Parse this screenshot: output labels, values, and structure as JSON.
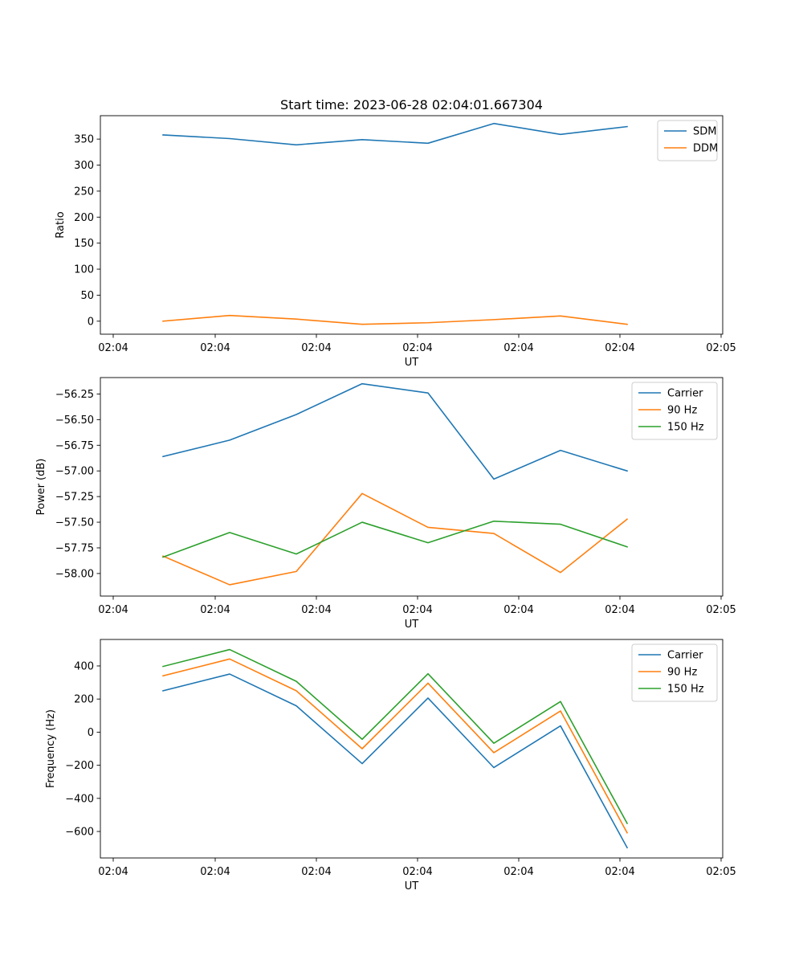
{
  "figure": {
    "title": "Start time: 2023-06-28 02:04:01.667304"
  },
  "chart_data": [
    {
      "type": "line",
      "title": "Start time: 2023-06-28 02:04:01.667304",
      "xlabel": "UT",
      "ylabel": "Ratio",
      "x_tick_labels": [
        "02:04",
        "02:04",
        "02:04",
        "02:04",
        "02:04",
        "02:04",
        "02:05"
      ],
      "ylim": [
        -25,
        395
      ],
      "y_ticks": [
        0,
        50,
        100,
        150,
        200,
        250,
        300,
        350
      ],
      "legend_position": "top-right",
      "grid": false,
      "series": [
        {
          "name": "SDM",
          "color": "#1f77b4",
          "values": [
            358,
            351,
            339,
            349,
            342,
            380,
            359,
            374
          ]
        },
        {
          "name": "DDM",
          "color": "#ff7f0e",
          "values": [
            0,
            11,
            4,
            -6,
            -3,
            3,
            10,
            -6
          ]
        }
      ]
    },
    {
      "type": "line",
      "title": "",
      "xlabel": "UT",
      "ylabel": "Power (dB)",
      "x_tick_labels": [
        "02:04",
        "02:04",
        "02:04",
        "02:04",
        "02:04",
        "02:04",
        "02:05"
      ],
      "ylim": [
        -58.22,
        -56.09
      ],
      "y_ticks": [
        -58.0,
        -57.75,
        -57.5,
        -57.25,
        -57.0,
        -56.75,
        -56.5,
        -56.25
      ],
      "y_tick_labels": [
        "−58.00",
        "−57.75",
        "−57.50",
        "−57.25",
        "−57.00",
        "−56.75",
        "−56.50",
        "−56.25"
      ],
      "legend_position": "top-right",
      "grid": false,
      "series": [
        {
          "name": "Carrier",
          "color": "#1f77b4",
          "values": [
            -56.86,
            -56.7,
            -56.45,
            -56.15,
            -56.24,
            -57.08,
            -56.8,
            -57.0
          ]
        },
        {
          "name": "90 Hz",
          "color": "#ff7f0e",
          "values": [
            -57.83,
            -58.11,
            -57.98,
            -57.22,
            -57.55,
            -57.61,
            -57.99,
            -57.47
          ]
        },
        {
          "name": "150 Hz",
          "color": "#2ca02c",
          "values": [
            -57.84,
            -57.6,
            -57.81,
            -57.5,
            -57.7,
            -57.49,
            -57.52,
            -57.74
          ]
        }
      ]
    },
    {
      "type": "line",
      "title": "",
      "xlabel": "UT",
      "ylabel": "Frequency (Hz)",
      "x_tick_labels": [
        "02:04",
        "02:04",
        "02:04",
        "02:04",
        "02:04",
        "02:04",
        "02:05"
      ],
      "ylim": [
        -760,
        560
      ],
      "y_ticks": [
        -600,
        -400,
        -200,
        0,
        200,
        400
      ],
      "y_tick_labels": [
        "−600",
        "−400",
        "−200",
        "0",
        "200",
        "400"
      ],
      "legend_position": "top-right",
      "grid": false,
      "series": [
        {
          "name": "Carrier",
          "color": "#1f77b4",
          "values": [
            250,
            351,
            159,
            -190,
            206,
            -214,
            38,
            -698
          ]
        },
        {
          "name": "90 Hz",
          "color": "#ff7f0e",
          "values": [
            340,
            442,
            250,
            -100,
            296,
            -124,
            128,
            -608
          ]
        },
        {
          "name": "150 Hz",
          "color": "#2ca02c",
          "values": [
            397,
            499,
            307,
            -43,
            353,
            -67,
            185,
            -551
          ]
        }
      ]
    }
  ]
}
